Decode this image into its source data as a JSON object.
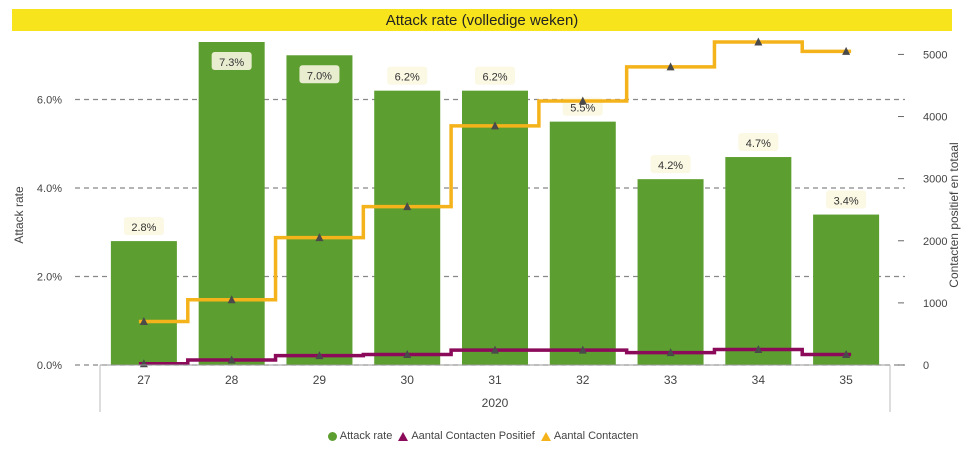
{
  "chart_data": {
    "type": "bar",
    "title": "Attack rate (volledige weken)",
    "categories": [
      "27",
      "28",
      "29",
      "30",
      "31",
      "32",
      "33",
      "34",
      "35"
    ],
    "x_group_label": "2020",
    "ylabel": "Attack rate",
    "y2label": "Contacten positief en totaal",
    "ylim": [
      0,
      7.3
    ],
    "y_ticks": [
      "0.0%",
      "2.0%",
      "4.0%",
      "6.0%"
    ],
    "y_tick_values": [
      0,
      2,
      4,
      6
    ],
    "y2lim": [
      0,
      5200
    ],
    "y2_ticks": [
      "0",
      "1000",
      "2000",
      "3000",
      "4000",
      "5000"
    ],
    "y2_tick_values": [
      0,
      1000,
      2000,
      3000,
      4000,
      5000
    ],
    "grid": true,
    "legend_position": "bottom",
    "series": [
      {
        "name": "Attack rate",
        "type": "bar",
        "axis": "left",
        "color": "#5c9e2f",
        "values": [
          2.8,
          7.3,
          7.0,
          6.2,
          6.2,
          5.5,
          4.2,
          4.7,
          3.4
        ],
        "labels": [
          "2.8%",
          "7.3%",
          "7.0%",
          "6.2%",
          "6.2%",
          "5.5%",
          "4.2%",
          "4.7%",
          "3.4%"
        ]
      },
      {
        "name": "Aantal Contacten Positief",
        "type": "step",
        "axis": "right",
        "color": "#8b0a5a",
        "values": [
          20,
          80,
          150,
          170,
          240,
          240,
          200,
          250,
          170
        ]
      },
      {
        "name": "Aantal Contacten",
        "type": "step",
        "axis": "right",
        "color": "#f5b31b",
        "values": [
          700,
          1050,
          2050,
          2550,
          3850,
          4250,
          4800,
          5200,
          5050
        ]
      }
    ]
  }
}
